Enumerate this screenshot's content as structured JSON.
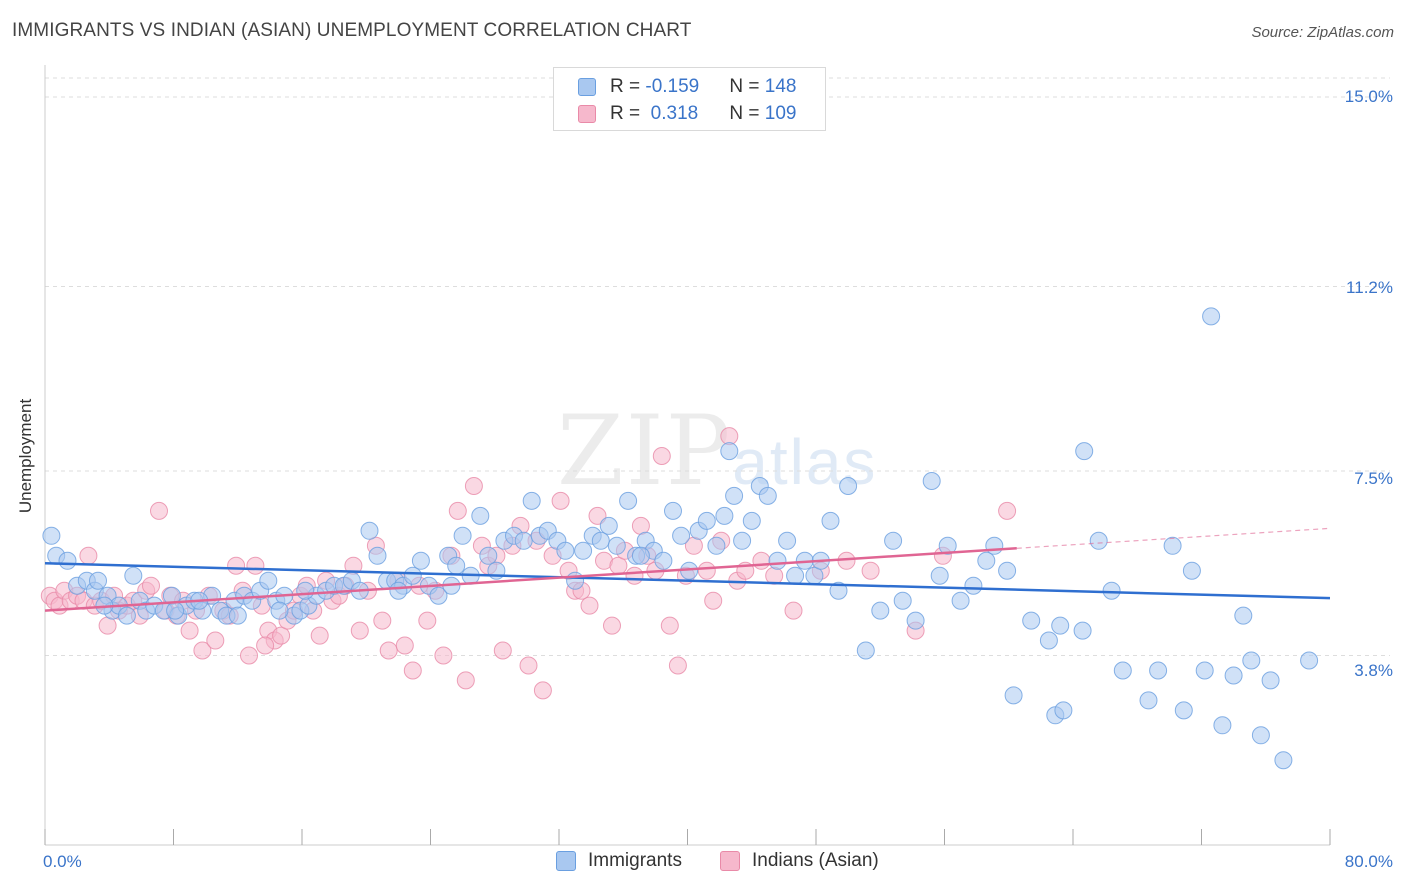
{
  "title": "IMMIGRANTS VS INDIAN (ASIAN) UNEMPLOYMENT CORRELATION CHART",
  "source": "Source: ZipAtlas.com",
  "watermark": {
    "main": "ZIP",
    "sub": "atlas"
  },
  "legend": {
    "rows": [
      {
        "r_label": "R = ",
        "r_value": "-0.159",
        "n_label": "N = ",
        "n_value": "148"
      },
      {
        "r_label": "R = ",
        "r_value": " 0.318",
        "n_label": "N = ",
        "n_value": "109"
      }
    ],
    "series_names": [
      "Immigrants",
      "Indians (Asian)"
    ]
  },
  "colors": {
    "immigrants_fill": "#a9c8f0",
    "immigrants_stroke": "#6a9fe0",
    "immigrants_line": "#2f6fd0",
    "indians_fill": "#f6b8cc",
    "indians_stroke": "#e98aa8",
    "indians_line": "#e06593",
    "grid": "#dddddd",
    "tick_text": "#3a74c9"
  },
  "chart_data": {
    "type": "scatter",
    "title": "IMMIGRANTS VS INDIAN (ASIAN) UNEMPLOYMENT CORRELATION CHART",
    "xlabel": "",
    "ylabel": "Unemployment",
    "xlim": [
      0,
      80
    ],
    "ylim": [
      0,
      15.5
    ],
    "y_ticks": [
      3.8,
      7.5,
      11.2,
      15.0
    ],
    "y_tick_labels": [
      "3.8%",
      "7.5%",
      "11.2%",
      "15.0%"
    ],
    "x_tick_labels": [
      "0.0%",
      "80.0%"
    ],
    "grid": true,
    "legend_position": "top-center",
    "series": [
      {
        "name": "Immigrants",
        "stats": {
          "R": -0.159,
          "N": 148
        },
        "trend": {
          "x0": 0,
          "y0": 5.65,
          "x1": 80,
          "y1": 4.95
        },
        "points": [
          [
            0.4,
            6.2
          ],
          [
            0.7,
            5.8
          ],
          [
            1.4,
            5.7
          ],
          [
            2.0,
            5.2
          ],
          [
            2.6,
            5.3
          ],
          [
            3.1,
            5.1
          ],
          [
            3.3,
            5.3
          ],
          [
            3.9,
            5.0
          ],
          [
            4.2,
            4.7
          ],
          [
            4.6,
            4.8
          ],
          [
            5.1,
            4.6
          ],
          [
            5.5,
            5.4
          ],
          [
            5.9,
            4.9
          ],
          [
            6.3,
            4.7
          ],
          [
            6.8,
            4.8
          ],
          [
            7.4,
            4.7
          ],
          [
            7.9,
            5.0
          ],
          [
            8.3,
            4.6
          ],
          [
            8.8,
            4.8
          ],
          [
            9.3,
            4.9
          ],
          [
            9.8,
            4.7
          ],
          [
            10.4,
            5.0
          ],
          [
            10.9,
            4.7
          ],
          [
            11.3,
            4.6
          ],
          [
            11.8,
            4.9
          ],
          [
            12.4,
            5.0
          ],
          [
            12.9,
            4.9
          ],
          [
            13.4,
            5.1
          ],
          [
            13.9,
            5.3
          ],
          [
            14.4,
            4.9
          ],
          [
            14.9,
            5.0
          ],
          [
            15.5,
            4.6
          ],
          [
            15.9,
            4.7
          ],
          [
            16.4,
            4.8
          ],
          [
            16.9,
            5.0
          ],
          [
            17.5,
            5.1
          ],
          [
            18.0,
            5.2
          ],
          [
            18.6,
            5.2
          ],
          [
            19.1,
            5.3
          ],
          [
            19.6,
            5.1
          ],
          [
            20.2,
            6.3
          ],
          [
            20.7,
            5.8
          ],
          [
            21.3,
            5.3
          ],
          [
            21.8,
            5.3
          ],
          [
            22.3,
            5.2
          ],
          [
            22.9,
            5.4
          ],
          [
            23.4,
            5.7
          ],
          [
            23.9,
            5.2
          ],
          [
            24.5,
            5.0
          ],
          [
            25.1,
            5.8
          ],
          [
            25.6,
            5.6
          ],
          [
            26.0,
            6.2
          ],
          [
            26.5,
            5.4
          ],
          [
            27.1,
            6.6
          ],
          [
            27.6,
            5.8
          ],
          [
            28.1,
            5.5
          ],
          [
            28.6,
            6.1
          ],
          [
            29.2,
            6.2
          ],
          [
            29.8,
            6.1
          ],
          [
            30.3,
            6.9
          ],
          [
            30.8,
            6.2
          ],
          [
            31.3,
            6.3
          ],
          [
            31.9,
            6.1
          ],
          [
            32.4,
            5.9
          ],
          [
            33.0,
            5.3
          ],
          [
            33.5,
            5.9
          ],
          [
            34.1,
            6.2
          ],
          [
            34.6,
            6.1
          ],
          [
            35.1,
            6.4
          ],
          [
            35.6,
            6.0
          ],
          [
            36.3,
            6.9
          ],
          [
            36.8,
            5.8
          ],
          [
            37.4,
            6.1
          ],
          [
            37.9,
            5.9
          ],
          [
            38.5,
            5.7
          ],
          [
            39.1,
            6.7
          ],
          [
            39.6,
            6.2
          ],
          [
            40.1,
            5.5
          ],
          [
            40.7,
            6.3
          ],
          [
            41.2,
            6.5
          ],
          [
            41.8,
            6.0
          ],
          [
            42.3,
            6.6
          ],
          [
            42.9,
            7.0
          ],
          [
            43.4,
            6.1
          ],
          [
            44.0,
            6.5
          ],
          [
            44.5,
            7.2
          ],
          [
            45.0,
            7.0
          ],
          [
            45.6,
            5.7
          ],
          [
            46.2,
            6.1
          ],
          [
            46.7,
            5.4
          ],
          [
            47.3,
            5.7
          ],
          [
            47.9,
            5.4
          ],
          [
            48.3,
            5.7
          ],
          [
            48.9,
            6.5
          ],
          [
            49.4,
            5.1
          ],
          [
            50.0,
            7.2
          ],
          [
            51.1,
            3.9
          ],
          [
            52.0,
            4.7
          ],
          [
            52.8,
            6.1
          ],
          [
            53.4,
            4.9
          ],
          [
            54.2,
            4.5
          ],
          [
            55.2,
            7.3
          ],
          [
            55.7,
            5.4
          ],
          [
            56.2,
            6.0
          ],
          [
            57.0,
            4.9
          ],
          [
            57.8,
            5.2
          ],
          [
            58.6,
            5.7
          ],
          [
            59.1,
            6.0
          ],
          [
            59.9,
            5.5
          ],
          [
            60.3,
            3.0
          ],
          [
            61.4,
            4.5
          ],
          [
            62.5,
            4.1
          ],
          [
            62.9,
            2.6
          ],
          [
            63.2,
            4.4
          ],
          [
            63.4,
            2.7
          ],
          [
            64.6,
            4.3
          ],
          [
            64.7,
            7.9
          ],
          [
            65.6,
            6.1
          ],
          [
            66.4,
            5.1
          ],
          [
            67.1,
            3.5
          ],
          [
            68.7,
            2.9
          ],
          [
            69.3,
            3.5
          ],
          [
            70.2,
            6.0
          ],
          [
            70.9,
            2.7
          ],
          [
            71.4,
            5.5
          ],
          [
            72.2,
            3.5
          ],
          [
            73.3,
            2.4
          ],
          [
            74.6,
            4.6
          ],
          [
            75.1,
            3.7
          ],
          [
            74.0,
            3.4
          ],
          [
            75.7,
            2.2
          ],
          [
            76.3,
            3.3
          ],
          [
            77.1,
            1.7
          ],
          [
            78.7,
            3.7
          ],
          [
            72.6,
            10.6
          ],
          [
            42.6,
            7.9
          ],
          [
            37.1,
            5.8
          ],
          [
            9.6,
            4.9
          ],
          [
            3.7,
            4.8
          ],
          [
            8.1,
            4.7
          ],
          [
            12.0,
            4.6
          ],
          [
            22.0,
            5.1
          ],
          [
            16.2,
            5.1
          ],
          [
            25.3,
            5.2
          ],
          [
            14.6,
            4.7
          ]
        ]
      },
      {
        "name": "Indians (Asian)",
        "stats": {
          "R": 0.318,
          "N": 109
        },
        "trend": {
          "x0": 0,
          "y0": 4.7,
          "x1": 60.5,
          "y1": 5.95
        },
        "trend_extension": {
          "x0": 60.5,
          "y0": 5.95,
          "x1": 80,
          "y1": 6.35
        },
        "points": [
          [
            0.3,
            5.0
          ],
          [
            0.6,
            4.9
          ],
          [
            0.9,
            4.8
          ],
          [
            1.2,
            5.1
          ],
          [
            1.6,
            4.9
          ],
          [
            2.0,
            5.0
          ],
          [
            2.4,
            4.9
          ],
          [
            2.7,
            5.8
          ],
          [
            3.1,
            4.8
          ],
          [
            3.5,
            4.9
          ],
          [
            3.9,
            4.4
          ],
          [
            4.3,
            5.0
          ],
          [
            4.6,
            4.7
          ],
          [
            5.1,
            4.8
          ],
          [
            5.5,
            4.9
          ],
          [
            5.9,
            4.6
          ],
          [
            6.3,
            5.1
          ],
          [
            6.6,
            5.2
          ],
          [
            7.1,
            6.7
          ],
          [
            7.5,
            4.7
          ],
          [
            7.8,
            5.0
          ],
          [
            8.2,
            4.6
          ],
          [
            8.6,
            4.9
          ],
          [
            9.0,
            4.3
          ],
          [
            9.4,
            4.7
          ],
          [
            9.8,
            3.9
          ],
          [
            10.2,
            5.0
          ],
          [
            10.6,
            4.1
          ],
          [
            11.1,
            4.7
          ],
          [
            11.5,
            4.6
          ],
          [
            11.9,
            5.6
          ],
          [
            12.3,
            5.1
          ],
          [
            12.7,
            3.8
          ],
          [
            13.1,
            5.6
          ],
          [
            13.5,
            4.8
          ],
          [
            13.9,
            4.3
          ],
          [
            14.3,
            4.1
          ],
          [
            14.7,
            4.2
          ],
          [
            15.1,
            4.5
          ],
          [
            15.5,
            4.7
          ],
          [
            15.9,
            5.0
          ],
          [
            16.3,
            5.2
          ],
          [
            16.7,
            4.7
          ],
          [
            17.1,
            4.2
          ],
          [
            17.5,
            5.3
          ],
          [
            17.9,
            4.9
          ],
          [
            18.3,
            5.0
          ],
          [
            18.7,
            5.2
          ],
          [
            19.2,
            5.6
          ],
          [
            19.6,
            4.3
          ],
          [
            20.1,
            5.1
          ],
          [
            20.6,
            6.0
          ],
          [
            21.0,
            4.5
          ],
          [
            21.4,
            3.9
          ],
          [
            22.0,
            5.3
          ],
          [
            22.4,
            4.0
          ],
          [
            22.9,
            3.5
          ],
          [
            23.3,
            5.2
          ],
          [
            23.8,
            4.5
          ],
          [
            24.3,
            5.1
          ],
          [
            24.8,
            3.8
          ],
          [
            25.3,
            5.8
          ],
          [
            25.7,
            6.7
          ],
          [
            26.2,
            3.3
          ],
          [
            26.7,
            7.2
          ],
          [
            27.2,
            6.0
          ],
          [
            27.6,
            5.6
          ],
          [
            28.1,
            5.8
          ],
          [
            28.5,
            3.9
          ],
          [
            29.1,
            6.0
          ],
          [
            29.6,
            6.4
          ],
          [
            30.1,
            3.6
          ],
          [
            30.6,
            6.1
          ],
          [
            31.0,
            3.1
          ],
          [
            31.6,
            5.8
          ],
          [
            32.1,
            6.9
          ],
          [
            32.6,
            5.5
          ],
          [
            33.0,
            5.1
          ],
          [
            33.4,
            5.1
          ],
          [
            33.9,
            4.8
          ],
          [
            34.4,
            6.6
          ],
          [
            34.8,
            5.7
          ],
          [
            35.3,
            4.4
          ],
          [
            35.7,
            5.6
          ],
          [
            36.1,
            5.9
          ],
          [
            36.7,
            5.4
          ],
          [
            37.1,
            6.4
          ],
          [
            37.5,
            5.8
          ],
          [
            38.0,
            5.5
          ],
          [
            38.4,
            7.8
          ],
          [
            38.9,
            4.4
          ],
          [
            39.4,
            3.6
          ],
          [
            39.9,
            5.4
          ],
          [
            40.4,
            6.0
          ],
          [
            41.2,
            5.5
          ],
          [
            41.6,
            4.9
          ],
          [
            42.1,
            6.1
          ],
          [
            42.6,
            8.2
          ],
          [
            43.1,
            5.3
          ],
          [
            43.6,
            5.5
          ],
          [
            44.6,
            5.7
          ],
          [
            45.4,
            5.4
          ],
          [
            46.6,
            4.7
          ],
          [
            48.3,
            5.5
          ],
          [
            49.9,
            5.7
          ],
          [
            51.4,
            5.5
          ],
          [
            54.2,
            4.3
          ],
          [
            55.9,
            5.8
          ],
          [
            59.9,
            6.7
          ],
          [
            13.7,
            4.0
          ]
        ]
      }
    ]
  }
}
